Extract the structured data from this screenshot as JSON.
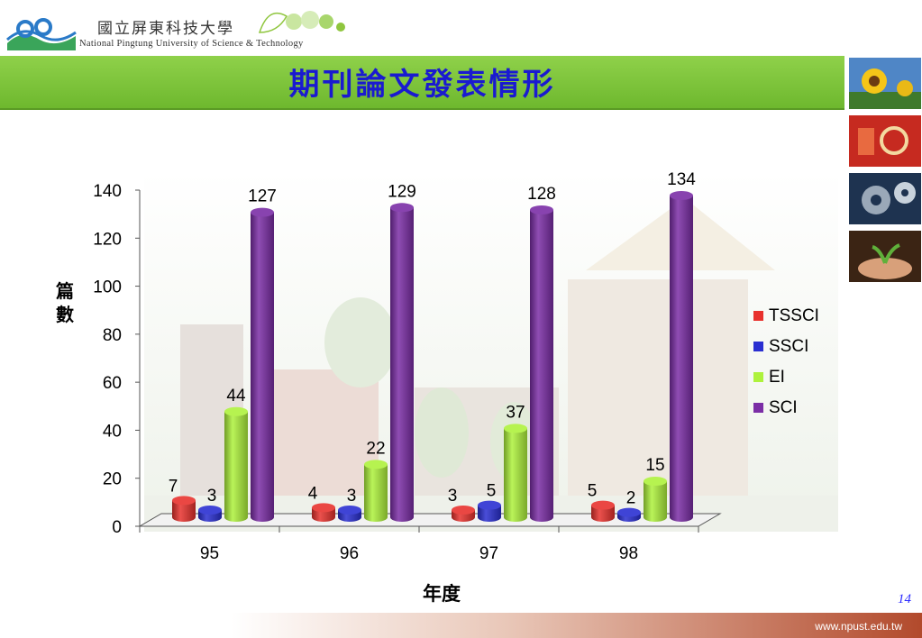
{
  "header": {
    "school_cn": "國立屏東科技大學",
    "school_en": "National Pingtung University of Science & Technology"
  },
  "slide": {
    "title": "期刊論文發表情形",
    "page_number": "14",
    "url": "www.npust.edu.tw"
  },
  "colors": {
    "TSSCI": "#e8322e",
    "SSCI": "#2a2fd1",
    "EI": "#aef23c",
    "SCI": "#7b2ea6"
  },
  "chart_data": {
    "type": "bar",
    "categories": [
      "95",
      "96",
      "97",
      "98"
    ],
    "series": [
      {
        "name": "TSSCI",
        "values": [
          7,
          4,
          3,
          5
        ]
      },
      {
        "name": "SSCI",
        "values": [
          3,
          3,
          5,
          2
        ]
      },
      {
        "name": "EI",
        "values": [
          44,
          22,
          37,
          15
        ]
      },
      {
        "name": "SCI",
        "values": [
          127,
          129,
          128,
          134
        ]
      }
    ],
    "xlabel": "年度",
    "ylabel": "篇數",
    "ylim": [
      0,
      140
    ],
    "yticks": [
      0,
      20,
      40,
      60,
      80,
      100,
      120,
      140
    ],
    "legend_position": "right",
    "grid": false
  }
}
